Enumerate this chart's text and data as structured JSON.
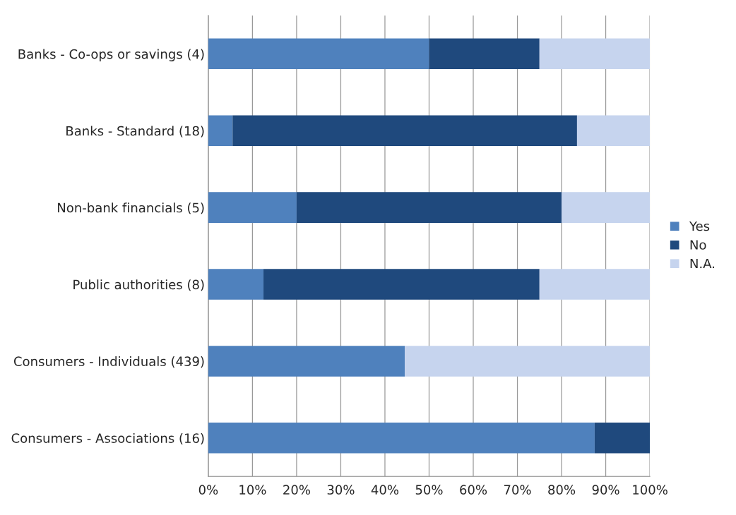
{
  "chart_data": {
    "type": "bar",
    "orientation": "horizontal",
    "stacked": true,
    "categories": [
      "Banks - Co-ops or savings (4)",
      "Banks - Standard (18)",
      "Non-bank financials (5)",
      "Public authorities (8)",
      "Consumers - Individuals (439)",
      "Consumers - Associations (16)"
    ],
    "series": [
      {
        "name": "Yes",
        "color": "#4f81bd",
        "values": [
          50,
          5.5,
          20,
          12.5,
          44.5,
          87.5
        ]
      },
      {
        "name": "No",
        "color": "#1f497d",
        "values": [
          25,
          78,
          60,
          62.5,
          0,
          12.5
        ]
      },
      {
        "name": "N.A.",
        "color": "#c6d4ee",
        "values": [
          25,
          16.5,
          20,
          25,
          55.5,
          0
        ]
      }
    ],
    "xlim": [
      0,
      100
    ],
    "xticks": [
      {
        "value": 0,
        "label": "0%"
      },
      {
        "value": 10,
        "label": "10%"
      },
      {
        "value": 20,
        "label": "20%"
      },
      {
        "value": 30,
        "label": "30%"
      },
      {
        "value": 40,
        "label": "40%"
      },
      {
        "value": 50,
        "label": "50%"
      },
      {
        "value": 60,
        "label": "60%"
      },
      {
        "value": 70,
        "label": "70%"
      },
      {
        "value": 80,
        "label": "80%"
      },
      {
        "value": 90,
        "label": "90%"
      },
      {
        "value": 100,
        "label": "100%"
      }
    ],
    "grid": "x",
    "legend": "right"
  }
}
